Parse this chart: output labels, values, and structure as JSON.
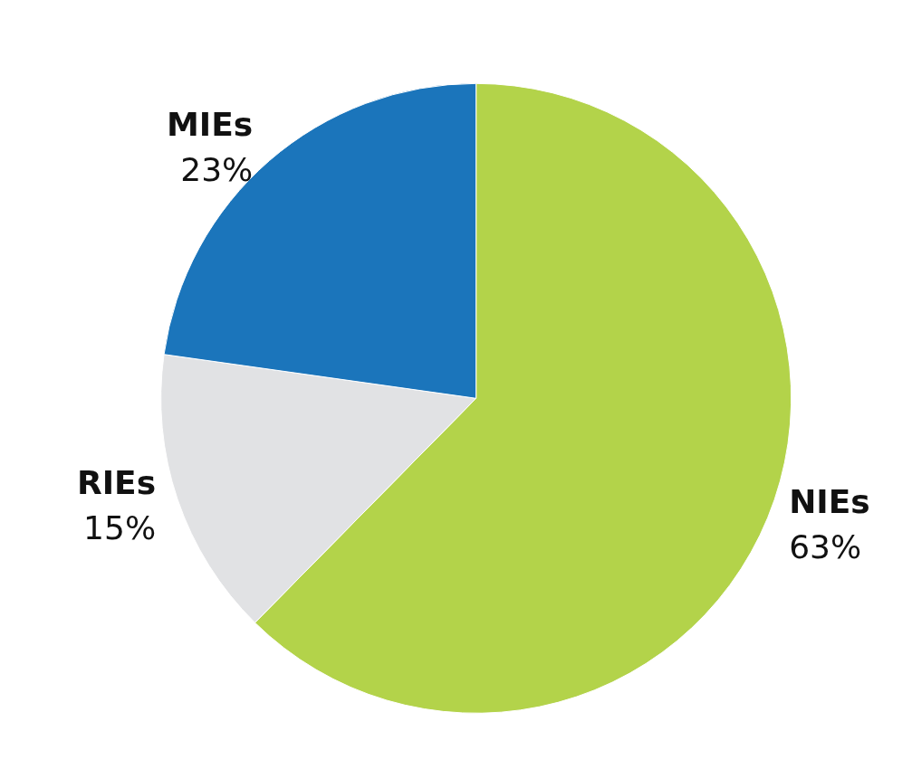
{
  "chart_data": {
    "type": "pie",
    "categories": [
      "NIEs",
      "RIEs",
      "MIEs"
    ],
    "values": [
      63,
      15,
      23
    ],
    "colors": [
      "#b3d34a",
      "#e1e2e4",
      "#1b75bb"
    ],
    "value_labels": [
      "63%",
      "15%",
      "23%"
    ],
    "legend": false
  }
}
